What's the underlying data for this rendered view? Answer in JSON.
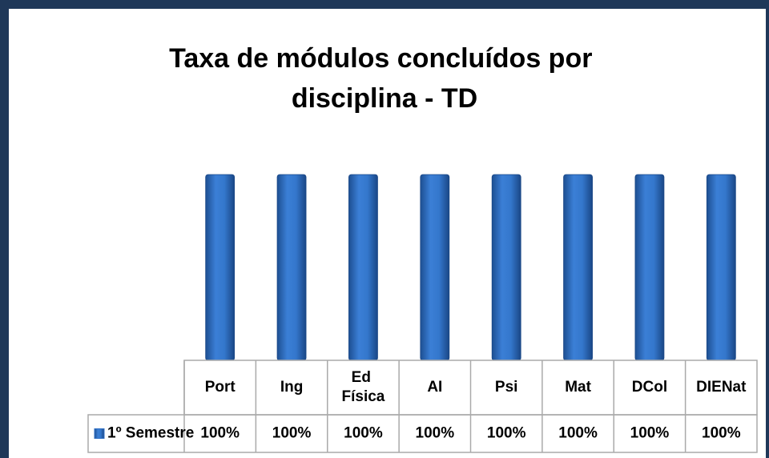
{
  "chart_data": {
    "type": "bar",
    "title": "Taxa de módulos concluídos por disciplina - TD",
    "categories": [
      "Port",
      "Ing",
      "Ed Física",
      "AI",
      "Psi",
      "Mat",
      "DCol",
      "DIENat"
    ],
    "series": [
      {
        "name": "1º Semestre",
        "color": "#2f6fc4",
        "values": [
          100,
          100,
          100,
          100,
          100,
          100,
          100,
          100
        ],
        "value_labels": [
          "100%",
          "100%",
          "100%",
          "100%",
          "100%",
          "100%",
          "100%",
          "100%"
        ]
      }
    ],
    "ylim": [
      0,
      100
    ]
  }
}
